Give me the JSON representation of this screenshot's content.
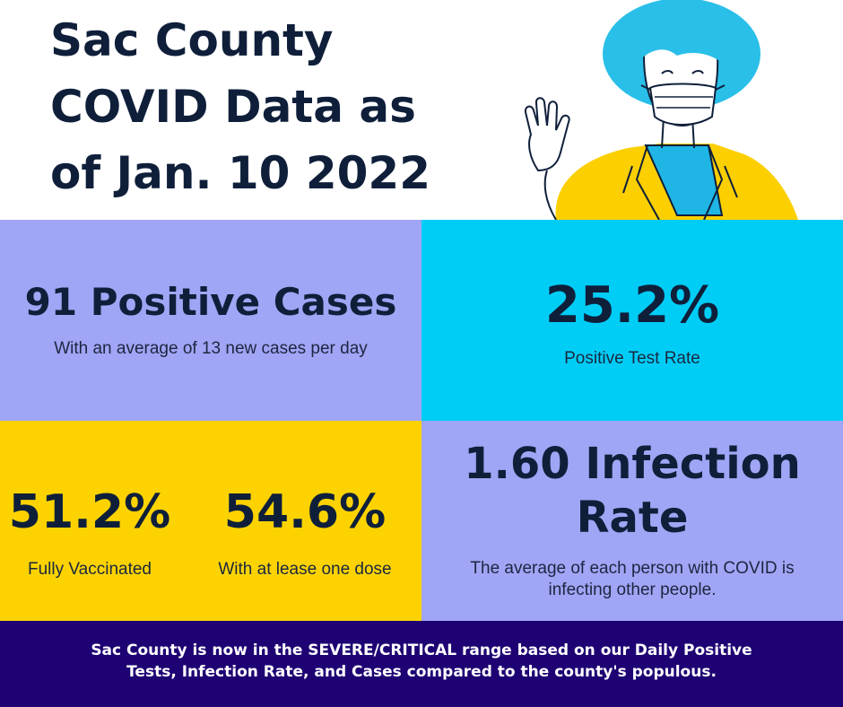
{
  "title": {
    "line1": "Sac County",
    "line2": "COVID Data as",
    "line3": "of Jan. 10 2022"
  },
  "illustration": {
    "icon": "masked-person-waving-icon",
    "colors": {
      "hair": "#29bfe8",
      "jacket": "#fccf00",
      "shirt": "#1fb6e6",
      "outline": "#0f1f3a"
    }
  },
  "cases": {
    "headline": "91 Positive Cases",
    "subtext": "With an average of 13 new cases per day"
  },
  "test_rate": {
    "value": "25.2%",
    "label": "Positive Test Rate"
  },
  "vaccination": {
    "full_value": "51.2%",
    "full_label": "Fully Vaccinated",
    "partial_value": "54.6%",
    "partial_label": "With at lease one dose"
  },
  "infection": {
    "headline_line1": "1.60 Infection",
    "headline_line2": "Rate",
    "subtext_line1": "The average of each person with COVID is",
    "subtext_line2": "infecting other people."
  },
  "footer": {
    "line1": "Sac County is now in the SEVERE/CRITICAL range based on our Daily Positive",
    "line2": "Tests, Infection Rate, and Cases compared to the county's populous."
  },
  "colors": {
    "lavender": "#a1a5f5",
    "cyan": "#00cdf6",
    "yellow": "#fcd300",
    "navy": "#1e0273",
    "text": "#0f1f3a"
  }
}
